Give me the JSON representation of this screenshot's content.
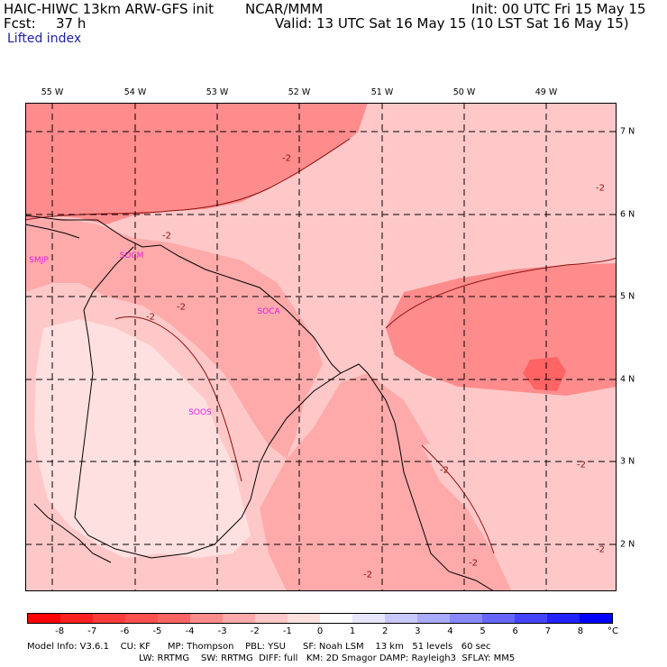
{
  "header": {
    "model": "HAIC-HIWC 13km ARW-GFS init",
    "center": "NCAR/MMM",
    "init": "Init: 00 UTC Fri 15 May 15",
    "fcst_label": "Fcst:",
    "fcst_value": "37 h",
    "valid": "Valid: 13 UTC Sat 16 May 15 (10 LST Sat 16 May 15)",
    "field": "Lifted index"
  },
  "map": {
    "lon_ticks": [
      "55 W",
      "54 W",
      "53 W",
      "52 W",
      "51 W",
      "50 W",
      "49 W"
    ],
    "lat_ticks": [
      "7 N",
      "6 N",
      "5 N",
      "4 N",
      "3 N",
      "2 N"
    ],
    "stations": [
      "SMJP",
      "SOCM",
      "SOCA",
      "SOOS"
    ],
    "contour_label": "-2",
    "fill_colors": {
      "neg5": "#ff6464",
      "neg4": "#ff8c8c",
      "neg3": "#ffaaaa",
      "neg2": "#ffc8c8",
      "neg1": "#ffe0e0"
    }
  },
  "colorbar": {
    "labels": [
      "-8",
      "-7",
      "-6",
      "-5",
      "-4",
      "-3",
      "-2",
      "-1",
      "0",
      "1",
      "2",
      "3",
      "4",
      "5",
      "6",
      "7",
      "8"
    ],
    "unit": "°C",
    "colors": [
      "#ff0000",
      "#ff2020",
      "#ff3c3c",
      "#ff5050",
      "#ff6464",
      "#ff8c8c",
      "#ffaaaa",
      "#ffc8c8",
      "#ffe0e0",
      "#ffffff",
      "#e6e6ff",
      "#c8c8ff",
      "#aaaaff",
      "#8888ff",
      "#6666ff",
      "#4444ff",
      "#2222ff",
      "#0000ff"
    ]
  },
  "info": {
    "line1": "Model Info: V3.6.1    CU: KF      MP: Thompson    PBL: YSU      SF: Noah LSM    13 km   51 levels   60 sec",
    "line2": "LW: RRTMG    SW: RRTMG  DIFF: full   KM: 2D Smagor DAMP: Rayleigh3  SFLAY: MM5"
  }
}
